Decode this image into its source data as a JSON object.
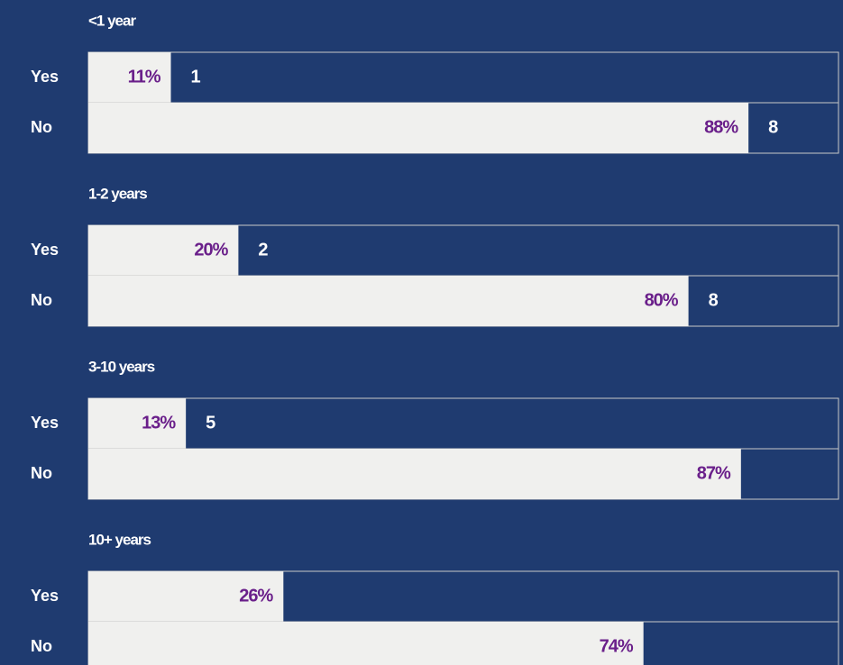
{
  "chart_data": {
    "type": "bar",
    "xlim": [
      0,
      100
    ],
    "bar_color": "#f0f0ee",
    "background_color": "#1f3b70",
    "groups": [
      {
        "title": "<1 year",
        "categories": [
          "Yes",
          "No"
        ],
        "values": [
          11,
          88
        ],
        "value_labels": [
          "11%",
          "88%"
        ],
        "counts": [
          1,
          8
        ]
      },
      {
        "title": "1-2 years",
        "categories": [
          "Yes",
          "No"
        ],
        "values": [
          20,
          80
        ],
        "value_labels": [
          "20%",
          "80%"
        ],
        "counts": [
          2,
          8
        ]
      },
      {
        "title": "3-10 years",
        "categories": [
          "Yes",
          "No"
        ],
        "values": [
          13,
          87
        ],
        "value_labels": [
          "13%",
          "87%"
        ],
        "counts": [
          5,
          null
        ]
      },
      {
        "title": "10+ years",
        "categories": [
          "Yes",
          "No"
        ],
        "values": [
          26,
          74
        ],
        "value_labels": [
          "26%",
          "74%"
        ],
        "counts": [
          null,
          null
        ]
      }
    ]
  }
}
